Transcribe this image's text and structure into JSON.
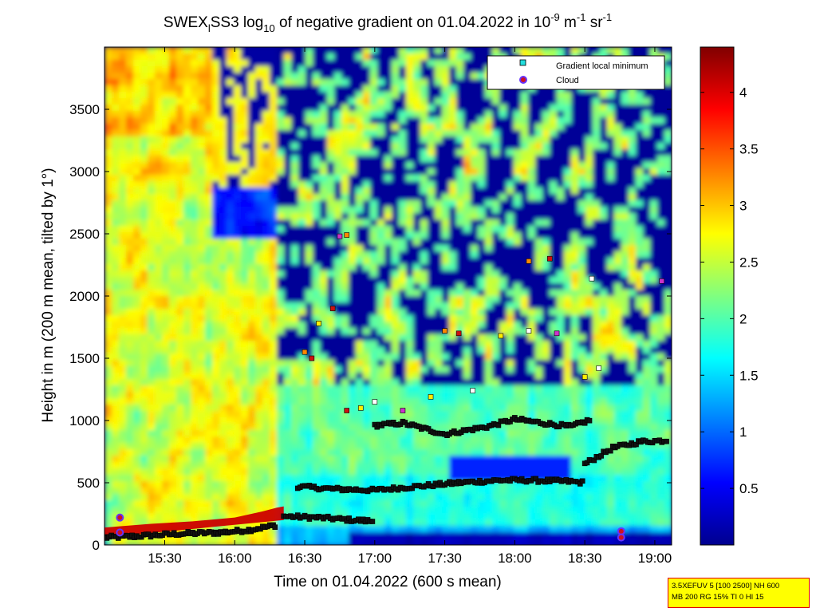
{
  "chart_data": {
    "type": "heatmap",
    "title": {
      "pre": "SWEX",
      "sub1": "l",
      "mid": "SS3 log",
      "sub2": "10",
      "post": " of negative gradient on 01.04.2022 in 10",
      "sup1": "-9",
      "unit1": " m",
      "sup2": "-1",
      "unit2": " sr",
      "sup3": "-1"
    },
    "xlabel": "Time on 01.04.2022 (600 s mean)",
    "ylabel": "Height in m (200 m mean, tilted by 1°)",
    "x_ticks": [
      "15:30",
      "16:00",
      "16:30",
      "17:00",
      "17:30",
      "18:00",
      "18:30",
      "19:00"
    ],
    "x_tick_hours": [
      15.5,
      16.0,
      16.5,
      17.0,
      17.5,
      18.0,
      18.5,
      19.0
    ],
    "xlim_hours": [
      15.07,
      19.12
    ],
    "y_ticks": [
      0,
      500,
      1000,
      1500,
      2000,
      2500,
      3000,
      3500
    ],
    "ylim": [
      0,
      4000
    ],
    "colorbar": {
      "ticks": [
        0.5,
        1,
        1.5,
        2,
        2.5,
        3,
        3.5,
        4
      ],
      "labels": [
        "0.5",
        "1",
        "1.5",
        "2",
        "2.5",
        "3",
        "3.5",
        "4"
      ],
      "range": [
        0,
        4.4
      ],
      "colormap": "jet"
    },
    "legend": {
      "placement": "top-right",
      "entries": [
        {
          "label": "Gradient local minimum",
          "marker": "square",
          "color": "#22dddd"
        },
        {
          "label": "Cloud",
          "marker": "circle",
          "color": "#cc1122",
          "edge": "#6633ff"
        }
      ]
    },
    "series": [
      {
        "name": "Gradient local minimum",
        "layers": [
          {
            "x": [
              15.07,
              15.3,
              15.6,
              15.9,
              16.1,
              16.25,
              16.3
            ],
            "y": [
              60,
              70,
              90,
              100,
              120,
              150,
              160
            ]
          },
          {
            "x": [
              16.35,
              16.6,
              16.85,
              17.0
            ],
            "y": [
              230,
              220,
              200,
              190
            ]
          },
          {
            "x": [
              16.45,
              16.7,
              17.0,
              17.3,
              17.6,
              17.9,
              18.1,
              18.4,
              18.5
            ],
            "y": [
              470,
              450,
              440,
              470,
              500,
              520,
              520,
              510,
              500
            ]
          },
          {
            "x": [
              17.0,
              17.2,
              17.5,
              17.8,
              18.0,
              18.2,
              18.4,
              18.55
            ],
            "y": [
              960,
              980,
              890,
              950,
              1010,
              980,
              950,
              1010
            ]
          },
          {
            "x": [
              18.5,
              18.7,
              18.9,
              19.1
            ],
            "y": [
              650,
              780,
              830,
              840
            ]
          }
        ]
      },
      {
        "name": "Cloud",
        "x": [
          15.18,
          15.18,
          18.76,
          18.76
        ],
        "y": [
          220,
          100,
          110,
          60
        ]
      }
    ]
  },
  "info_box": {
    "line1": "3.5XEFUV 5 [100 2500] NH 600",
    "line2": "MB 200 RG 15% TI 0 HI 15"
  }
}
